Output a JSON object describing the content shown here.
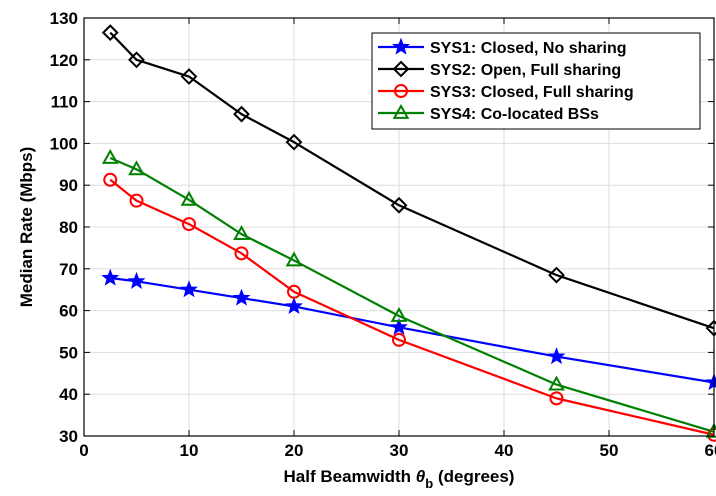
{
  "chart_data": {
    "type": "line",
    "xlabel_prefix": "Half Beamwidth ",
    "xlabel_symbol": "θ",
    "xlabel_subscript": "b",
    "xlabel_suffix": " (degrees)",
    "ylabel": "Median Rate (Mbps)",
    "xlim": [
      0,
      60
    ],
    "ylim": [
      30,
      130
    ],
    "xticks": [
      "0",
      "10",
      "20",
      "30",
      "40",
      "50",
      "60"
    ],
    "yticks": [
      "30",
      "40",
      "50",
      "60",
      "70",
      "80",
      "90",
      "100",
      "110",
      "120",
      "130"
    ],
    "grid": true,
    "legend_position": "top-right",
    "series": [
      {
        "name": "SYS1: Closed, No sharing",
        "color": "#0000ff",
        "marker": "star",
        "x": [
          2.5,
          5,
          10,
          15,
          20,
          30,
          45,
          60
        ],
        "y": [
          67.8,
          67.0,
          65.0,
          63.0,
          61.0,
          56.0,
          49.0,
          42.8
        ]
      },
      {
        "name": "SYS2: Open, Full sharing",
        "color": "#000000",
        "marker": "diamond",
        "x": [
          2.5,
          5,
          10,
          15,
          20,
          30,
          45,
          60
        ],
        "y": [
          126.5,
          120.0,
          116.0,
          107.0,
          100.3,
          85.2,
          68.5,
          55.8
        ]
      },
      {
        "name": "SYS3: Closed, Full sharing",
        "color": "#ff0000",
        "marker": "circle",
        "x": [
          2.5,
          5,
          10,
          15,
          20,
          30,
          45,
          60
        ],
        "y": [
          91.3,
          86.3,
          80.7,
          73.7,
          64.5,
          53.0,
          39.0,
          30.3
        ]
      },
      {
        "name": "SYS4: Co-located BSs",
        "color": "#008000",
        "marker": "triangle",
        "x": [
          2.5,
          5,
          10,
          15,
          20,
          30,
          45,
          60
        ],
        "y": [
          96.5,
          93.8,
          86.5,
          78.3,
          72.0,
          58.7,
          42.3,
          31.0
        ]
      }
    ]
  }
}
